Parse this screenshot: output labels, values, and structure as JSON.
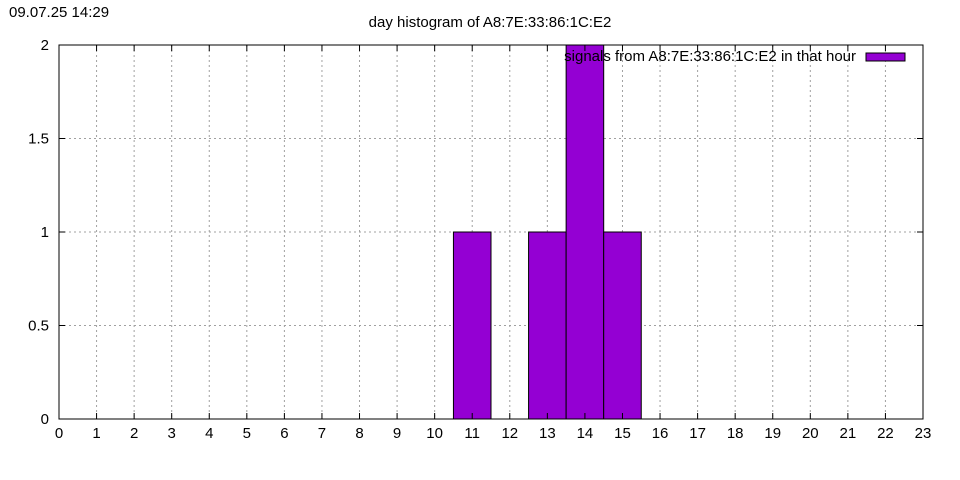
{
  "timestamp": "09.07.25 14:29",
  "chart_data": {
    "type": "bar",
    "title": "day histogram of A8:7E:33:86:1C:E2",
    "xlabel": "",
    "ylabel": "",
    "x_ticks": [
      0,
      1,
      2,
      3,
      4,
      5,
      6,
      7,
      8,
      9,
      10,
      11,
      12,
      13,
      14,
      15,
      16,
      17,
      18,
      19,
      20,
      21,
      22,
      23
    ],
    "y_ticks": [
      0,
      0.5,
      1,
      1.5,
      2
    ],
    "xlim": [
      0,
      23
    ],
    "ylim": [
      0,
      2
    ],
    "grid": true,
    "legend_position": "top-right",
    "series": [
      {
        "name": "signals from A8:7E:33:86:1C:E2 in that hour",
        "color": "#9400d3",
        "points": [
          {
            "x": 11,
            "y": 1
          },
          {
            "x": 13,
            "y": 1
          },
          {
            "x": 14,
            "y": 2
          },
          {
            "x": 15,
            "y": 1
          }
        ]
      }
    ]
  }
}
